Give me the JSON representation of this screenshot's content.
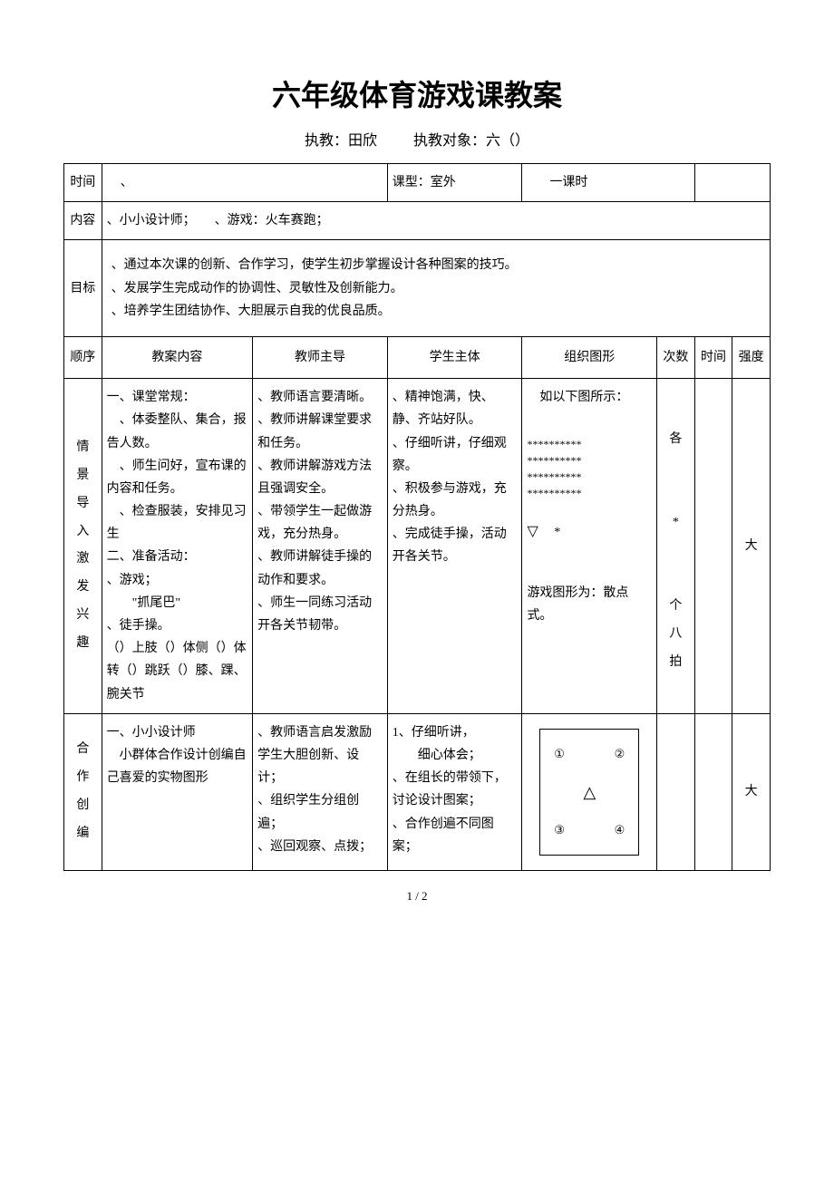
{
  "title": "六年级体育游戏课教案",
  "subtitle_label_teacher": "执教：",
  "subtitle_teacher": "田欣",
  "subtitle_label_target": "执教对象：",
  "subtitle_target": "六（）",
  "row_time_label": "时间",
  "row_time_val": "、",
  "row_type_label": "课型：",
  "row_type_val": "室外",
  "row_period": "一课时",
  "row_content_label": "内容",
  "row_content_val": "、小小设计师；　　、游戏：火车赛跑；",
  "row_goal_label": "目标",
  "row_goal_val": "、通过本次课的创新、合作学习，使学生初步掌握设计各种图案的技巧。\n、发展学生完成动作的协调性、灵敏性及创新能力。\n、培养学生团结协作、大胆展示自我的优良品质。",
  "th_order": "顺序",
  "th_content": "教案内容",
  "th_teacher": "教师主导",
  "th_student": "学生主体",
  "th_formation": "组织图形",
  "th_count": "次数",
  "th_time": "时间",
  "th_intensity": "强度",
  "section1_label": "情景导入激发兴趣",
  "section1_content": "一、课堂常规：\n　、体委整队、集合，报告人数。\n　、师生问好，宣布课的内容和任务。\n　、检查服装，安排见习生\n二、准备活动：\n、游戏；\n　　\"抓尾巴\"\n、徒手操。\n（）上肢（）体侧（）体转（）跳跃（）膝、踝、腕关节",
  "section1_teacher": "、教师语言要清晰。\n、教师讲解课堂要求和任务。\n、教师讲解游戏方法且强调安全。\n、带领学生一起做游戏，充分热身。\n、教师讲解徒手操的动作和要求。\n、师生一同练习活动开各关节韧带。",
  "section1_student": "、精神饱满，快、静、齐站好队。\n、仔细听讲，仔细观察。\n、积极参与游戏，充分热身。\n、完成徒手操，活动开各关节。",
  "section1_formation_intro": "　如以下图所示：",
  "section1_stars": "**********\n**********\n**********\n**********",
  "section1_triangle": "▽",
  "section1_star_single": "*",
  "section1_formation_note": "游戏图形为：散点式。",
  "section1_count": "各　*　个八拍",
  "section1_intensity": "大",
  "section2_label": "合作创编",
  "section2_content": "一、小小设计师\n　小群体合作设计创编自己喜爱的实物图形",
  "section2_teacher": "、教师语言启发激励学生大胆创新、设计；\n、组织学生分组创遍；\n、巡回观察、点拨；",
  "section2_student": "1、仔细听讲，\n　　细心体会；\n、在组长的带领下，讨论设计图案；\n、合作创遍不同图案；",
  "section2_c1": "①",
  "section2_c2": "②",
  "section2_c3": "③",
  "section2_c4": "④",
  "section2_tri": "△",
  "section2_intensity": "大",
  "page_num": "1 / 2"
}
